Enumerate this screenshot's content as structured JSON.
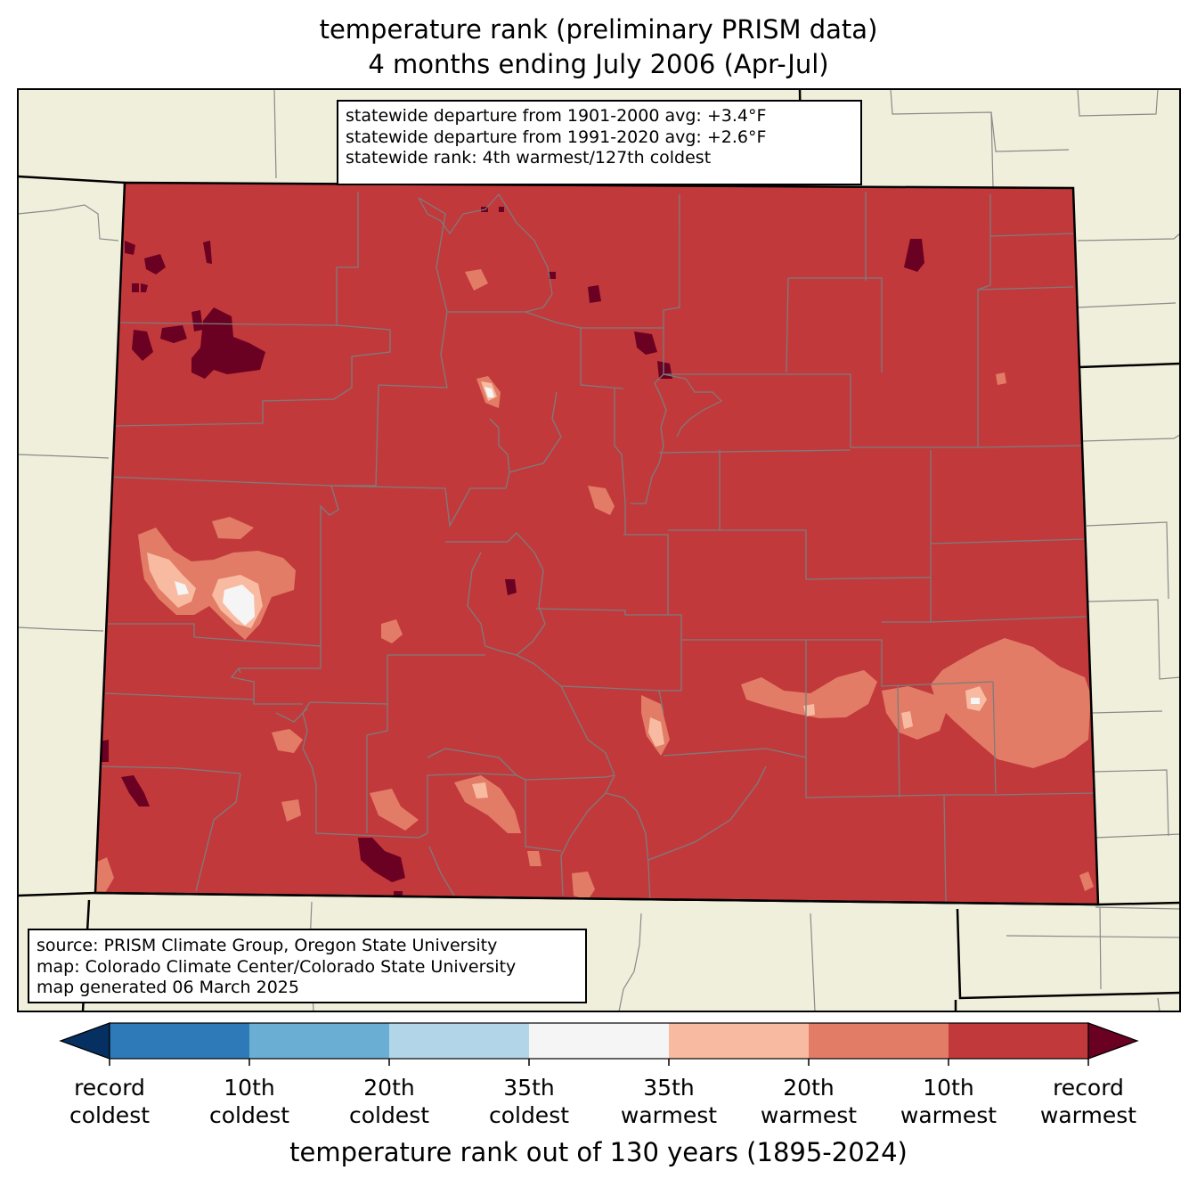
{
  "title": {
    "line1": "temperature rank (preliminary PRISM data)",
    "line2": "4 months ending July 2006 (Apr-Jul)"
  },
  "stats": {
    "line1": "statewide departure from 1901-2000 avg: +3.4°F",
    "line2": "statewide departure from 1991-2020 avg: +2.6°F",
    "line3": "statewide rank: 4th warmest/127th coldest"
  },
  "source": {
    "line1": "source: PRISM Climate Group, Oregon State University",
    "line2": "map: Colorado Climate Center/Colorado State University",
    "line3": "map generated 06 March 2025"
  },
  "colors": {
    "land": "#f0efdc",
    "record_coldest": "#053061",
    "c10": "#2e7ab9",
    "c20": "#6aaed4",
    "c35": "#b2d5e8",
    "mid": "#f5f5f5",
    "w35": "#f8bba2",
    "w20": "#e27c67",
    "w10": "#c2393c",
    "record_warmest": "#6a0022"
  },
  "colorbar": {
    "title": "temperature rank out of 130 years (1895-2024)",
    "labels": [
      {
        "line1": "record",
        "line2": "coldest"
      },
      {
        "line1": "10th",
        "line2": "coldest"
      },
      {
        "line1": "20th",
        "line2": "coldest"
      },
      {
        "line1": "35th",
        "line2": "coldest"
      },
      {
        "line1": "35th",
        "line2": "warmest"
      },
      {
        "line1": "20th",
        "line2": "warmest"
      },
      {
        "line1": "10th",
        "line2": "warmest"
      },
      {
        "line1": "record",
        "line2": "warmest"
      }
    ]
  }
}
